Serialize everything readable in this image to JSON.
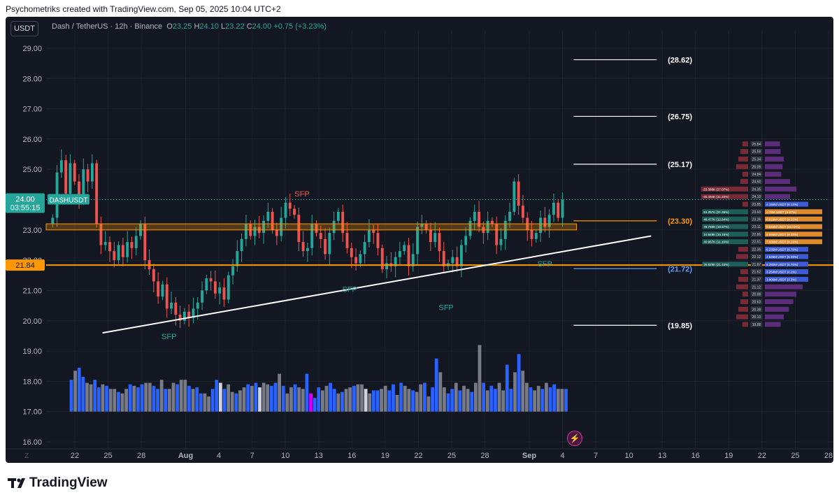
{
  "caption": "Psychometriks created with TradingView.com, Sep 05, 2025 10:04 UTC+2",
  "symbol_button": "USDT",
  "legend": {
    "title": "Dash / TetherUS · 12h · Binance",
    "o_label": "O",
    "o": "23.25",
    "h_label": "H",
    "h": "24.10",
    "l_label": "L",
    "l": "23.22",
    "c_label": "C",
    "c": "24.00",
    "change": "+0.75 (+3.23%)"
  },
  "brand": "TradingView",
  "colors": {
    "up": "#26a69a",
    "down": "#ef5350",
    "background": "#131722",
    "orange": "#ff9800",
    "vol_blue": "#2962ff",
    "vol_gray": "#787b86",
    "vol_magenta": "#d500f9",
    "vol_white": "#d1d4dc"
  },
  "chart_data": {
    "type": "candlestick",
    "title": "Dash / TetherUS · 12h · Binance",
    "ylim": [
      15.75,
      29.5
    ],
    "y_ticks": [
      "29.00",
      "28.00",
      "27.00",
      "26.00",
      "25.00",
      "24.00",
      "23.00",
      "22.00",
      "21.00",
      "20.00",
      "19.00",
      "18.00",
      "17.00",
      "16.00"
    ],
    "x_ticks": [
      "22",
      "25",
      "28",
      "Aug",
      "4",
      "7",
      "10",
      "13",
      "16",
      "19",
      "22",
      "25",
      "28",
      "Sep",
      "4",
      "7",
      "10",
      "13",
      "16",
      "19",
      "22",
      "25",
      "28"
    ],
    "x_tick_days": [
      -9,
      -6,
      -3,
      1,
      4,
      7,
      10,
      13,
      16,
      19,
      22,
      25,
      28,
      32,
      35,
      38,
      41,
      44,
      47,
      50,
      53,
      56,
      59
    ],
    "closes": [
      23.4,
      24.9,
      25.3,
      24.2,
      25.2,
      24.6,
      24.0,
      25.0,
      24.6,
      25.2,
      23.2,
      22.5,
      22.6,
      22.3,
      22.0,
      22.5,
      22.1,
      22.6,
      22.4,
      22.8,
      23.2,
      22.0,
      21.7,
      21.3,
      20.8,
      21.2,
      20.4,
      20.6,
      20.2,
      20.0,
      20.3,
      20.1,
      20.4,
      20.6,
      21.0,
      21.4,
      21.3,
      20.9,
      21.1,
      20.7,
      21.5,
      21.8,
      22.3,
      22.7,
      23.2,
      22.8,
      23.1,
      22.9,
      23.3,
      23.6,
      23.0,
      22.8,
      23.4,
      23.9,
      23.7,
      23.5,
      22.6,
      22.3,
      22.4,
      23.2,
      22.9,
      22.7,
      22.2,
      22.9,
      23.3,
      23.6,
      22.9,
      22.4,
      22.1,
      21.9,
      22.2,
      22.6,
      23.0,
      22.9,
      22.4,
      21.7,
      21.9,
      21.8,
      22.1,
      22.3,
      22.5,
      21.8,
      22.2,
      23.1,
      23.2,
      23.0,
      22.6,
      22.9,
      22.3,
      21.8,
      21.9,
      22.1,
      21.8,
      22.5,
      22.8,
      23.3,
      23.6,
      23.1,
      22.9,
      23.3,
      23.2,
      22.5,
      22.7,
      23.3,
      23.6,
      24.6,
      23.8,
      23.4,
      23.0,
      22.7,
      22.9,
      23.4,
      23.1,
      23.5,
      23.9,
      23.4,
      24.0
    ],
    "vol_values": [
      18.05,
      18.35,
      18.45,
      18.15,
      17.95,
      17.9,
      18.05,
      17.8,
      17.9,
      17.85,
      17.75,
      17.75,
      17.65,
      17.6,
      17.75,
      17.9,
      17.85,
      17.8,
      17.9,
      17.95,
      17.95,
      17.85,
      17.75,
      18.05,
      17.75,
      17.75,
      17.95,
      17.9,
      18.05,
      18.05,
      17.85,
      17.75,
      17.8,
      17.6,
      17.6,
      17.5,
      17.75,
      18.05,
      17.95,
      17.75,
      17.9,
      17.65,
      17.6,
      17.7,
      17.8,
      17.9,
      17.85,
      17.95,
      17.8,
      17.95,
      17.9,
      17.85,
      17.95,
      18.25,
      17.85,
      17.6,
      17.8,
      17.9,
      17.8,
      17.75,
      18.25,
      17.6,
      17.45,
      17.8,
      17.7,
      17.85,
      17.95,
      17.75,
      17.6,
      17.65,
      17.75,
      17.8,
      17.85,
      17.9,
      17.9,
      17.75,
      17.6,
      17.7,
      17.7,
      17.75,
      17.85,
      17.7,
      17.9,
      17.55,
      17.95,
      17.85,
      17.75,
      17.7,
      17.65,
      17.9,
      17.95,
      17.5,
      17.8,
      18.75,
      18.3,
      17.8,
      17.6,
      17.75,
      17.95,
      17.7,
      17.85,
      17.75,
      17.65,
      17.95,
      19.2,
      17.95,
      17.7,
      17.85,
      17.75,
      17.95,
      17.7,
      18.55,
      17.75,
      18.3,
      18.9,
      18.35,
      17.95,
      17.8,
      17.7,
      17.85,
      17.75,
      17.95,
      17.8,
      17.9,
      17.75,
      17.75,
      17.75
    ],
    "horizontal_levels": [
      {
        "label": "(28.62)",
        "value": 28.62,
        "color": "#ffffff"
      },
      {
        "label": "(26.75)",
        "value": 26.75,
        "color": "#ffffff"
      },
      {
        "label": "(25.17)",
        "value": 25.17,
        "color": "#ffffff"
      },
      {
        "label": "(23.30)",
        "value": 23.3,
        "color": "#ff9800"
      },
      {
        "label": "(21.72)",
        "value": 21.72,
        "color": "#5b9cf6"
      },
      {
        "label": "(19.85)",
        "value": 19.85,
        "color": "#ffffff"
      }
    ],
    "price_label": {
      "value": "24.00",
      "symbol": "DASHUSDT",
      "countdown": "03:55:15"
    },
    "support_label": "21.84",
    "support_value": 21.84,
    "zone": [
      23.0,
      23.2
    ],
    "trendline": [
      {
        "x": -6.5,
        "y": 19.6
      },
      {
        "x": 43.0,
        "y": 22.8
      }
    ],
    "annotations": [
      {
        "text": "SFP",
        "x": 11.5,
        "y": 24.1,
        "color": "#ef5350"
      },
      {
        "text": "SFP",
        "x": 15.8,
        "y": 20.95,
        "color": "#26a69a"
      },
      {
        "text": "SFP",
        "x": 24.5,
        "y": 20.35,
        "color": "#26a69a"
      },
      {
        "text": "SFP",
        "x": -0.5,
        "y": 19.4,
        "color": "#26a69a"
      },
      {
        "text": "SFP",
        "x": 33.4,
        "y": 21.8,
        "color": "#26a69a"
      }
    ],
    "depth_rows": [
      {
        "price": "25.84",
        "buy": "",
        "sell": "24"
      },
      {
        "price": "25.59",
        "buy": "",
        "sell": "25"
      },
      {
        "price": "25.34",
        "buy": "",
        "sell": "30"
      },
      {
        "price": "25.09",
        "buy": "",
        "sell": "28"
      },
      {
        "price": "24.84",
        "buy": "",
        "sell": "26"
      },
      {
        "price": "24.60",
        "buy": "",
        "sell": "40"
      },
      {
        "price": "24.35",
        "buy": "-23.388K (27.07%)",
        "sell": "50"
      },
      {
        "price": "24.10",
        "buy": "-45.494K (31.45%)",
        "sell": "40"
      },
      {
        "price": "23.85",
        "buy": "",
        "sell": "4.155M USDT (6.13%)"
      },
      {
        "price": "23.60",
        "buy": "61.257K (21.35%)",
        "sell": "4.78M USDT (6.97%)"
      },
      {
        "price": "23.36",
        "buy": "48.477K (12.84%)",
        "sell": "8.816M USDT (9.15%)"
      },
      {
        "price": "23.11",
        "buy": "78.759K (18.97%)",
        "sell": "9.543M USDT (42.02%)"
      },
      {
        "price": "22.86",
        "buy": "24.648K (15.15%)",
        "sell": "8.566M USDT (9.03%)"
      },
      {
        "price": "22.61",
        "buy": "40.967K (11.19%)",
        "sell": "7.636M USDT (8.19%)"
      },
      {
        "price": "22.36",
        "buy": "",
        "sell": "6.235M USDT (6.78%)"
      },
      {
        "price": "22.12",
        "buy": "",
        "sell": "4.645M USDT (5.09%)"
      },
      {
        "price": "21.87",
        "buy": "26.829K (21.45%)",
        "sell": "6.285M USDT (6.76%)"
      },
      {
        "price": "21.62",
        "buy": "",
        "sell": "3.254M USDT (4.1%)"
      },
      {
        "price": "21.37",
        "buy": "",
        "sell": "3.006M USDT (3.3%)"
      },
      {
        "price": "21.12",
        "buy": "",
        "sell": "60"
      },
      {
        "price": "20.88",
        "buy": "",
        "sell": "50"
      },
      {
        "price": "20.63",
        "buy": "",
        "sell": "45"
      },
      {
        "price": "20.38",
        "buy": "",
        "sell": "38"
      },
      {
        "price": "20.13",
        "buy": "",
        "sell": "30"
      },
      {
        "price": "19.88",
        "buy": "",
        "sell": "25"
      }
    ]
  }
}
